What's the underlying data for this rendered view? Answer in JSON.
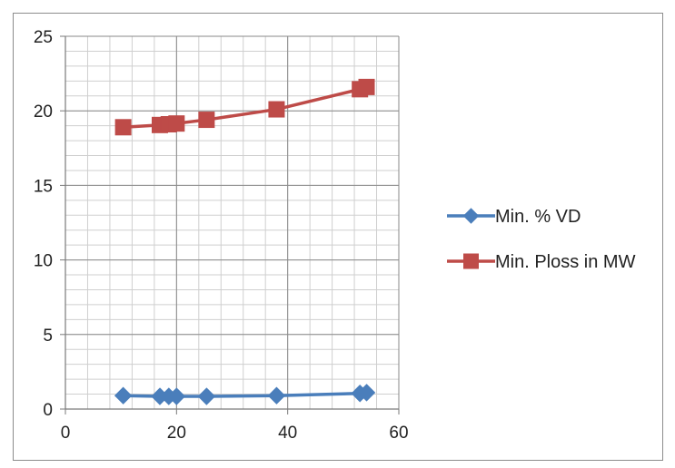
{
  "chart_data": {
    "type": "scatter",
    "title": "",
    "xlabel": "",
    "ylabel": "",
    "xlim": [
      0,
      60
    ],
    "ylim": [
      0,
      25
    ],
    "x_ticks": [
      0,
      20,
      40,
      60
    ],
    "y_ticks": [
      0,
      5,
      10,
      15,
      20,
      25
    ],
    "x_tick_labels": [
      "0",
      "20",
      "40",
      "60"
    ],
    "y_tick_labels": [
      "0",
      "5",
      "10",
      "15",
      "20",
      "25"
    ],
    "grid": true,
    "legend_position": "right",
    "lines": "straight lines with markers",
    "series": [
      {
        "name": "Min. % VD",
        "color": "#4a7ebb",
        "marker": "diamond",
        "points": [
          {
            "x": 10.4,
            "y": 0.9
          },
          {
            "x": 17.0,
            "y": 0.85
          },
          {
            "x": 18.6,
            "y": 0.85
          },
          {
            "x": 20.0,
            "y": 0.85
          },
          {
            "x": 25.4,
            "y": 0.85
          },
          {
            "x": 38.0,
            "y": 0.9
          },
          {
            "x": 53.0,
            "y": 1.05
          },
          {
            "x": 54.2,
            "y": 1.1
          }
        ]
      },
      {
        "name": "Min. Ploss in MW",
        "color": "#be4b48",
        "marker": "square",
        "points": [
          {
            "x": 10.4,
            "y": 18.9
          },
          {
            "x": 17.0,
            "y": 19.05
          },
          {
            "x": 18.6,
            "y": 19.1
          },
          {
            "x": 20.0,
            "y": 19.15
          },
          {
            "x": 25.4,
            "y": 19.4
          },
          {
            "x": 38.0,
            "y": 20.1
          },
          {
            "x": 53.0,
            "y": 21.45
          },
          {
            "x": 54.2,
            "y": 21.6
          }
        ]
      }
    ]
  }
}
